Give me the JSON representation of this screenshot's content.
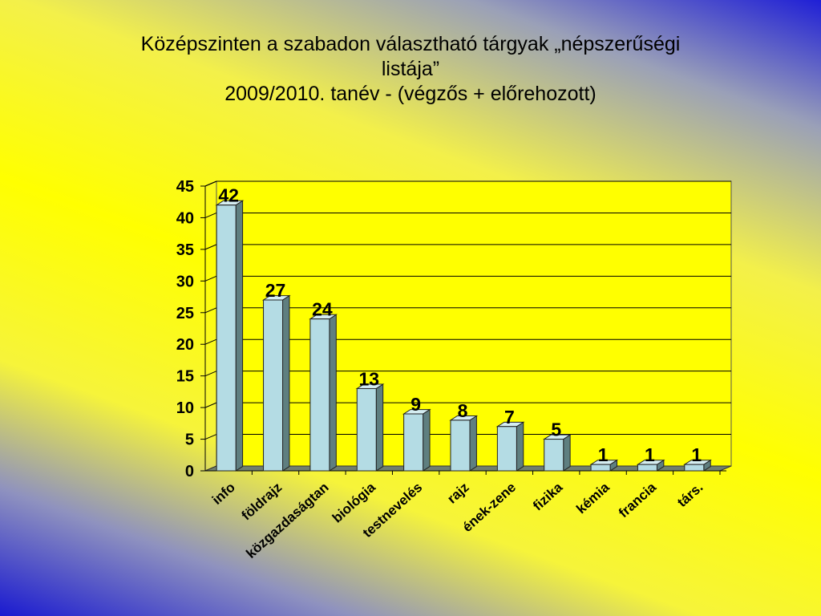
{
  "title_lines": [
    "Középszinten a szabadon választható tárgyak „népszerűségi",
    "listája”",
    "2009/2010. tanév - (végzős + előrehozott)"
  ],
  "chart_data": {
    "type": "bar",
    "title": "Középszinten a szabadon választható tárgyak „népszerűségi listája” 2009/2010. tanév - (végzős + előrehozott)",
    "categories": [
      "info",
      "földrajz",
      "közgazdaságtan",
      "biológia",
      "testnevelés",
      "rajz",
      "ének-zene",
      "fizika",
      "kémia",
      "francia",
      "társ."
    ],
    "values": [
      42,
      27,
      24,
      13,
      9,
      8,
      7,
      5,
      1,
      1,
      1
    ],
    "data_labels": [
      "42",
      "27",
      "24",
      "13",
      "9",
      "8",
      "7",
      "5",
      "1",
      "1",
      "1"
    ],
    "y_ticks": [
      "0",
      "5",
      "10",
      "15",
      "20",
      "25",
      "30",
      "35",
      "40",
      "45"
    ],
    "ylim": [
      0,
      45
    ],
    "grid": true,
    "style": "3d-column",
    "colors": {
      "bar_front": "#b4dce4",
      "bar_side": "#5f7f80",
      "bar_top": "#d5eef2",
      "floor": "#6f7f6f",
      "plot_bg": "#ffff00",
      "gridline": "#000000"
    }
  }
}
